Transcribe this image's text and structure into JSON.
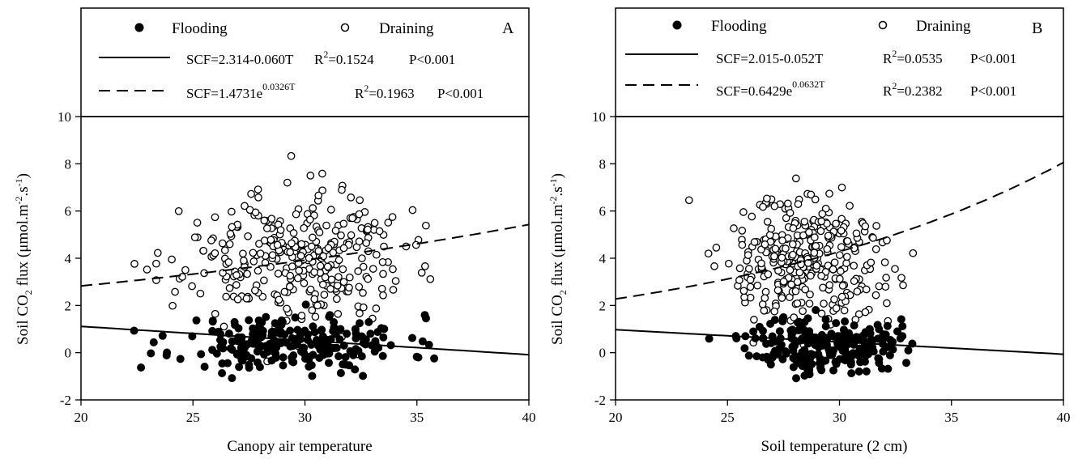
{
  "chart_data": [
    {
      "type": "scatter",
      "panel_label": "A",
      "xlabel": "Canopy air temperature",
      "ylabel": "Soil CO2 flux (μmol.m-2.s-1)",
      "xlim": [
        20,
        40
      ],
      "ylim": [
        -2,
        10
      ],
      "xticks": [
        "20",
        "25",
        "30",
        "35",
        "40"
      ],
      "yticks": [
        "-2",
        "0",
        "2",
        "4",
        "6",
        "8",
        "10"
      ],
      "legend": {
        "flooding": "Flooding",
        "draining": "Draining",
        "line1": {
          "eq": "SCF=2.314-0.060T",
          "r2_label": "R",
          "r2_sup": "2",
          "r2_val": "=0.1524",
          "p": "P<0.001"
        },
        "line2": {
          "eq_base": "SCF=1.4731e",
          "eq_sup": "0.0326T",
          "r2_label": "R",
          "r2_sup": "2",
          "r2_val": "=0.1963",
          "p": "P<0.001"
        }
      },
      "fits": {
        "linear": {
          "a": 2.314,
          "b": -0.06
        },
        "exponential": {
          "a": 1.4731,
          "b": 0.0326
        }
      },
      "series": [
        {
          "name": "Flooding",
          "marker": "filled",
          "center": [
            29.5,
            0.4
          ],
          "spread": [
            4.6,
            0.75
          ],
          "xrange": [
            22,
            39.8
          ],
          "n": 230,
          "seed": 11
        },
        {
          "name": "Draining",
          "marker": "open",
          "center": [
            29.5,
            3.9
          ],
          "spread": [
            4.4,
            1.8
          ],
          "xrange": [
            20.5,
            40
          ],
          "n": 330,
          "seed": 23
        }
      ]
    },
    {
      "type": "scatter",
      "panel_label": "B",
      "xlabel": "Soil temperature (2 cm)",
      "ylabel": "Soil CO2 flux (μmol.m-2.s-1)",
      "xlim": [
        20,
        40
      ],
      "ylim": [
        -2,
        10
      ],
      "xticks": [
        "20",
        "25",
        "30",
        "35",
        "40"
      ],
      "yticks": [
        "-2",
        "0",
        "2",
        "4",
        "6",
        "8",
        "10"
      ],
      "legend": {
        "flooding": "Flooding",
        "draining": "Draining",
        "line1": {
          "eq": "SCF=2.015-0.052T",
          "r2_label": "R",
          "r2_sup": "2",
          "r2_val": "=0.0535",
          "p": "P<0.001"
        },
        "line2": {
          "eq_base": "SCF=0.6429e",
          "eq_sup": "0.0632T",
          "r2_label": "R",
          "r2_sup": "2",
          "r2_val": "=0.2382",
          "p": "P<0.001"
        }
      },
      "fits": {
        "linear": {
          "a": 2.015,
          "b": -0.052
        },
        "exponential": {
          "a": 0.6429,
          "b": 0.0632
        }
      },
      "series": [
        {
          "name": "Flooding",
          "marker": "filled",
          "center": [
            29.3,
            0.35
          ],
          "spread": [
            3.0,
            0.75
          ],
          "xrange": [
            23.5,
            38.3
          ],
          "n": 230,
          "seed": 37
        },
        {
          "name": "Draining",
          "marker": "open",
          "center": [
            28.6,
            3.8
          ],
          "spread": [
            3.2,
            1.7
          ],
          "xrange": [
            20,
            40
          ],
          "n": 330,
          "seed": 51
        }
      ]
    }
  ]
}
